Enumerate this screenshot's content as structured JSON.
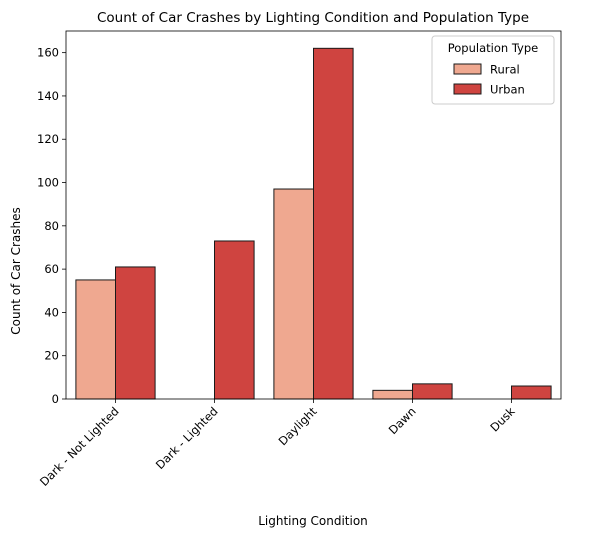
{
  "chart_data": {
    "type": "bar",
    "title": "Count of Car Crashes by Lighting Condition and Population Type",
    "xlabel": "Lighting Condition",
    "ylabel": "Count of Car Crashes",
    "categories": [
      "Dark - Not Lighted",
      "Dark - Lighted",
      "Daylight",
      "Dawn",
      "Dusk"
    ],
    "series": [
      {
        "name": "Rural",
        "values": [
          55,
          0,
          97,
          4,
          0
        ],
        "color": "#efa890"
      },
      {
        "name": "Urban",
        "values": [
          61,
          73,
          162,
          7,
          6
        ],
        "color": "#cf4440"
      }
    ],
    "ylim": [
      0,
      170
    ],
    "yticks": [
      0,
      20,
      40,
      60,
      80,
      100,
      120,
      140,
      160
    ],
    "grid": false,
    "legend": {
      "title": "Population Type",
      "placement": "top-right"
    }
  }
}
